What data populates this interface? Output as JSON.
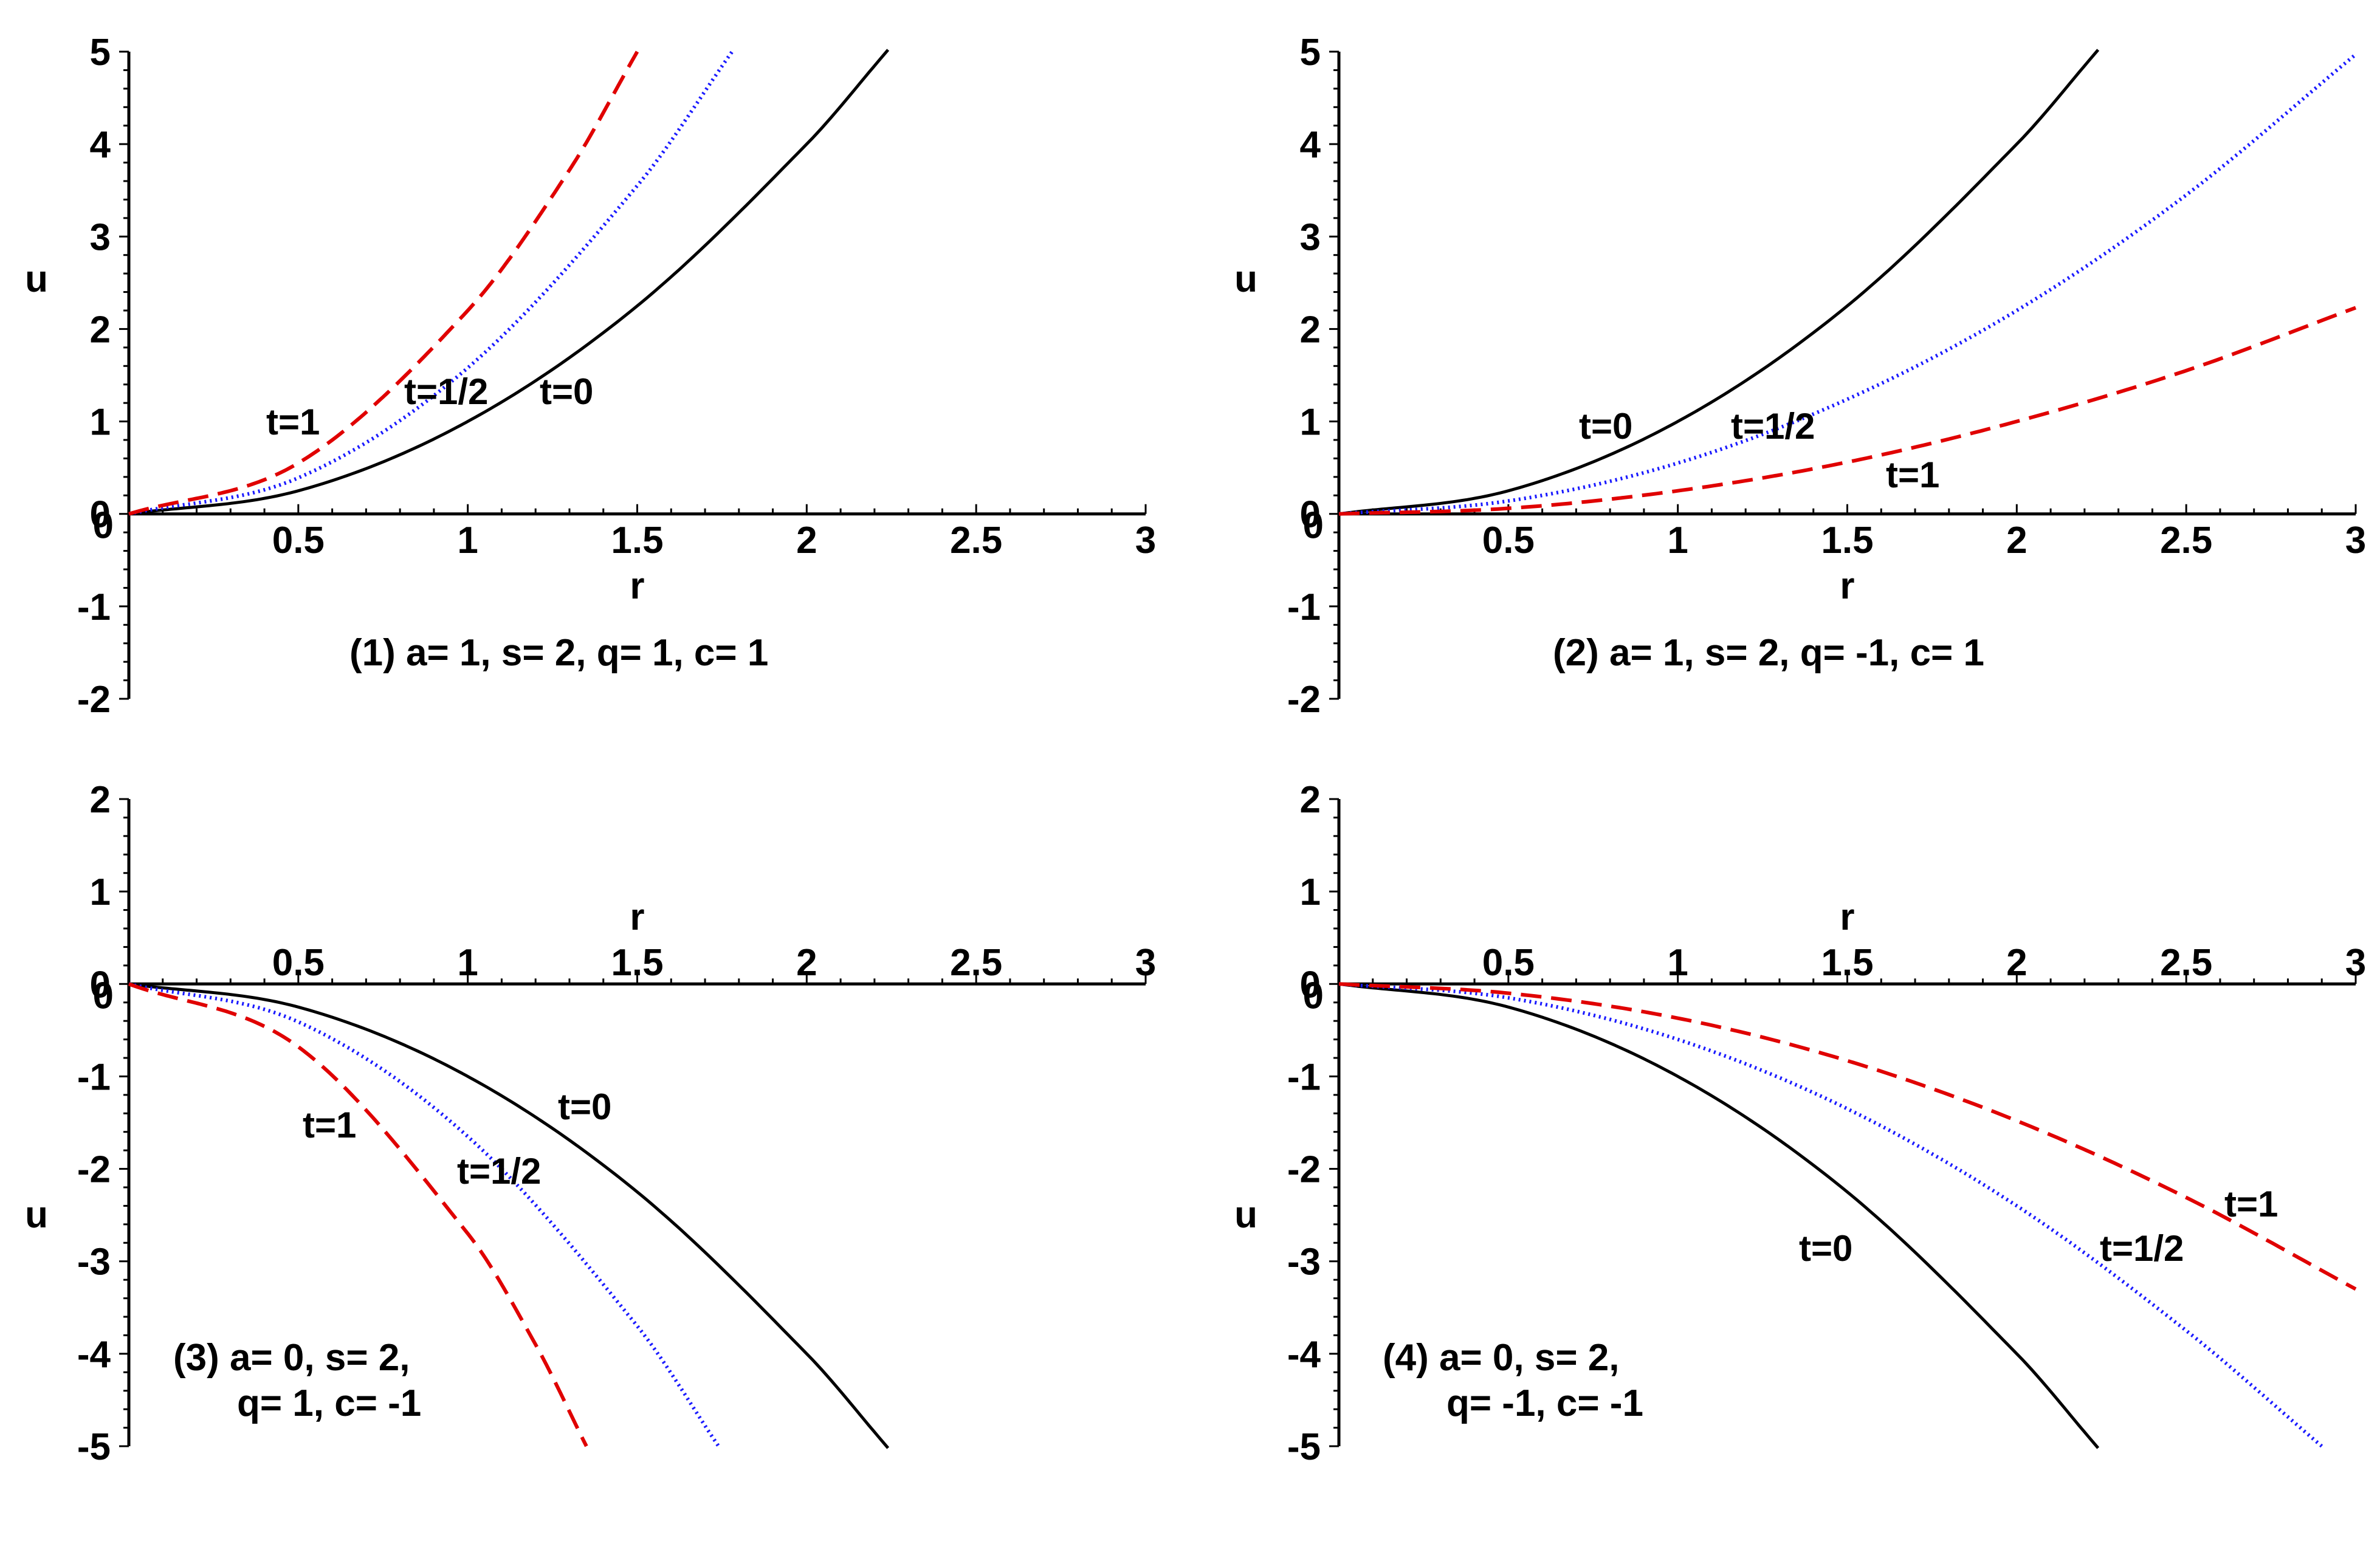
{
  "chart_data": [
    {
      "type": "line",
      "caption": "(1) a= 1, s= 2, q= 1, c= 1",
      "xlabel": "r",
      "ylabel": "u",
      "xlim": [
        0,
        3
      ],
      "ylim": [
        -2,
        5
      ],
      "xticks": [
        "0.5",
        "1",
        "1.5",
        "2",
        "2.5",
        "3"
      ],
      "yticks": [
        "5",
        "4",
        "3",
        "2",
        "1",
        "0",
        "-1",
        "-2"
      ],
      "grid": false,
      "series": [
        {
          "name": "t=0",
          "style": "solid",
          "color": "#000000",
          "x": [
            0,
            0.5,
            1,
            1.5,
            2,
            2.24
          ],
          "y": [
            0,
            0.25,
            1,
            2.25,
            4,
            5.02
          ]
        },
        {
          "name": "t=1/2",
          "style": "dotted",
          "color": "#1a1aff",
          "x": [
            0,
            0.5,
            1,
            1.5,
            1.78
          ],
          "y": [
            0,
            0.39,
            1.58,
            3.55,
            5
          ]
        },
        {
          "name": "t=1",
          "style": "dashed",
          "color": "#e00000",
          "x": [
            0,
            0.5,
            1,
            1.3,
            1.5
          ],
          "y": [
            0,
            0.55,
            2.2,
            3.72,
            5
          ]
        }
      ],
      "annotations": [
        "t=1",
        "t=1/2",
        "t=0"
      ]
    },
    {
      "type": "line",
      "caption": "(2) a= 1, s= 2, q= -1, c= 1",
      "xlabel": "r",
      "ylabel": "u",
      "xlim": [
        0,
        3
      ],
      "ylim": [
        -2,
        5
      ],
      "xticks": [
        "0.5",
        "1",
        "1.5",
        "2",
        "2.5",
        "3"
      ],
      "yticks": [
        "5",
        "4",
        "3",
        "2",
        "1",
        "0",
        "-1",
        "-2"
      ],
      "grid": false,
      "series": [
        {
          "name": "t=0",
          "style": "solid",
          "color": "#000000",
          "x": [
            0,
            0.5,
            1,
            1.5,
            2,
            2.24
          ],
          "y": [
            0,
            0.25,
            1,
            2.25,
            4,
            5.02
          ]
        },
        {
          "name": "t=1/2",
          "style": "dotted",
          "color": "#1a1aff",
          "x": [
            0,
            0.5,
            1,
            1.5,
            2,
            2.5,
            3
          ],
          "y": [
            0,
            0.14,
            0.55,
            1.24,
            2.2,
            3.45,
            4.97
          ]
        },
        {
          "name": "t=1",
          "style": "dashed",
          "color": "#e00000",
          "x": [
            0,
            0.5,
            1,
            1.5,
            2,
            2.5,
            3
          ],
          "y": [
            0,
            0.06,
            0.25,
            0.56,
            1.0,
            1.55,
            2.23
          ]
        }
      ],
      "annotations": [
        "t=0",
        "t=1/2",
        "t=1"
      ]
    },
    {
      "type": "line",
      "caption_lines": [
        "(3) a= 0, s= 2,",
        "q= 1, c= -1"
      ],
      "xlabel": "r",
      "ylabel": "u",
      "xlim": [
        0,
        3
      ],
      "ylim": [
        -5,
        2
      ],
      "xticks": [
        "0.5",
        "1",
        "1.5",
        "2",
        "2.5",
        "3"
      ],
      "yticks": [
        "2",
        "1",
        "0",
        "-1",
        "-2",
        "-3",
        "-4",
        "-5"
      ],
      "grid": false,
      "series": [
        {
          "name": "t=0",
          "style": "solid",
          "color": "#000000",
          "x": [
            0,
            0.5,
            1,
            1.5,
            2,
            2.24
          ],
          "y": [
            0,
            -0.25,
            -1,
            -2.25,
            -4,
            -5.02
          ]
        },
        {
          "name": "t=1/2",
          "style": "dotted",
          "color": "#1a1aff",
          "x": [
            0,
            0.5,
            1,
            1.5,
            1.74
          ],
          "y": [
            0,
            -0.41,
            -1.65,
            -3.7,
            -5
          ]
        },
        {
          "name": "t=1",
          "style": "dashed",
          "color": "#e00000",
          "x": [
            0,
            0.5,
            1,
            1.2,
            1.35
          ],
          "y": [
            0,
            -0.68,
            -2.7,
            -3.9,
            -5
          ]
        }
      ],
      "annotations": [
        "t=0",
        "t=1",
        "t=1/2"
      ]
    },
    {
      "type": "line",
      "caption_lines": [
        "(4) a= 0, s= 2,",
        "q= -1, c= -1"
      ],
      "xlabel": "r",
      "ylabel": "u",
      "xlim": [
        0,
        3
      ],
      "ylim": [
        -5,
        2
      ],
      "xticks": [
        "0.5",
        "1",
        "1.5",
        "2",
        "2.5",
        "3"
      ],
      "yticks": [
        "2",
        "1",
        "0",
        "-1",
        "-2",
        "-3",
        "-4",
        "-5"
      ],
      "grid": false,
      "series": [
        {
          "name": "t=0",
          "style": "solid",
          "color": "#000000",
          "x": [
            0,
            0.5,
            1,
            1.5,
            2,
            2.24
          ],
          "y": [
            0,
            -0.25,
            -1,
            -2.25,
            -4,
            -5.02
          ]
        },
        {
          "name": "t=1/2",
          "style": "dotted",
          "color": "#1a1aff",
          "x": [
            0,
            0.5,
            1,
            1.5,
            2,
            2.5,
            2.9
          ],
          "y": [
            0,
            -0.15,
            -0.6,
            -1.35,
            -2.4,
            -3.75,
            -5
          ]
        },
        {
          "name": "t=1",
          "style": "dashed",
          "color": "#e00000",
          "x": [
            0,
            0.5,
            1,
            1.5,
            2,
            2.5,
            3
          ],
          "y": [
            0,
            -0.1,
            -0.37,
            -0.83,
            -1.48,
            -2.31,
            -3.3
          ]
        }
      ],
      "annotations": [
        "t=1",
        "t=0",
        "t=1/2"
      ]
    }
  ]
}
